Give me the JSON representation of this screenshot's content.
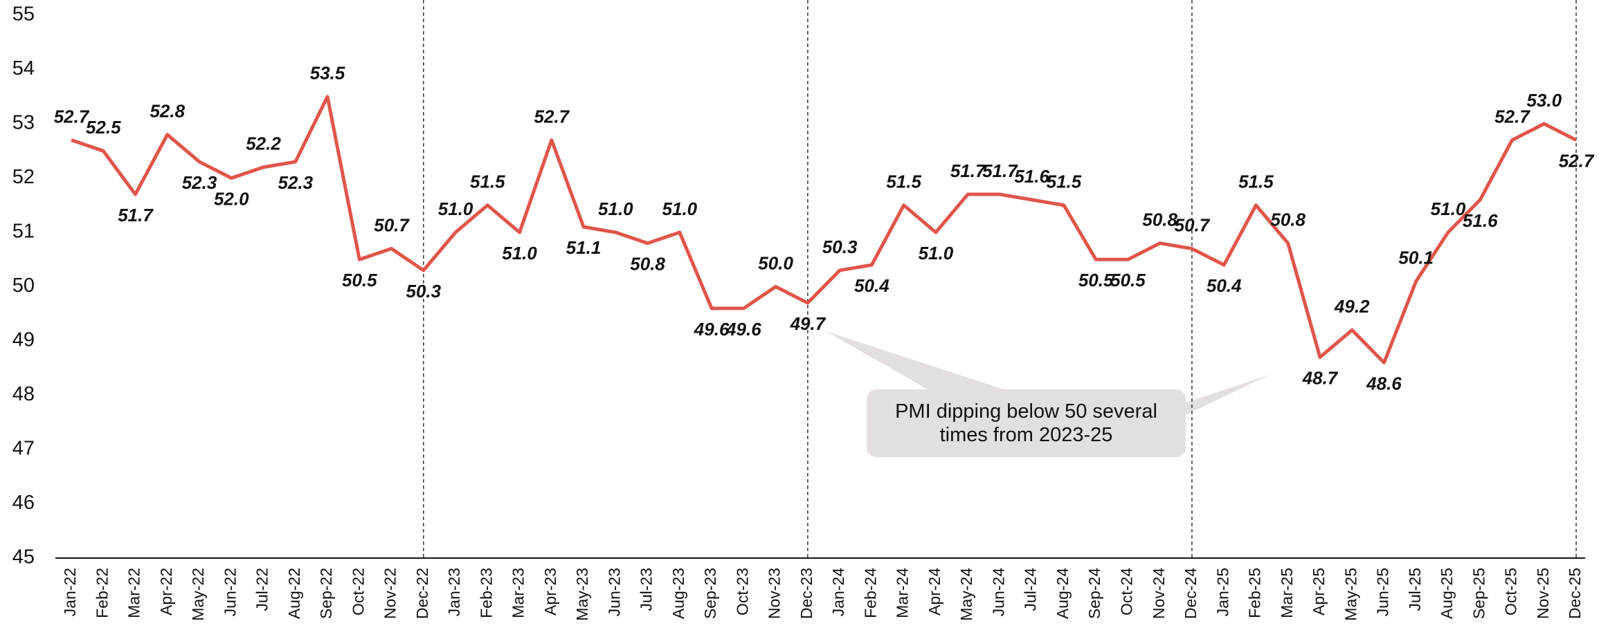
{
  "chart_data": {
    "type": "line",
    "categories": [
      "Jan-22",
      "Feb-22",
      "Mar-22",
      "Apr-22",
      "May-22",
      "Jun-22",
      "Jul-22",
      "Aug-22",
      "Sep-22",
      "Oct-22",
      "Nov-22",
      "Dec-22",
      "Jan-23",
      "Feb-23",
      "Mar-23",
      "Apr-23",
      "May-23",
      "Jun-23",
      "Jul-23",
      "Aug-23",
      "Sep-23",
      "Oct-23",
      "Nov-23",
      "Dec-23",
      "Jan-24",
      "Feb-24",
      "Mar-24",
      "Apr-24",
      "May-24",
      "Jun-24",
      "Jul-24",
      "Aug-24",
      "Sep-24",
      "Oct-24",
      "Nov-24",
      "Dec-24",
      "Jan-25",
      "Feb-25",
      "Mar-25",
      "Apr-25",
      "May-25",
      "Jun-25",
      "Jul-25",
      "Aug-25",
      "Sep-25",
      "Oct-25",
      "Nov-25",
      "Dec-25"
    ],
    "values": [
      52.7,
      52.5,
      51.7,
      52.8,
      52.3,
      52.0,
      52.2,
      52.3,
      53.5,
      50.5,
      50.7,
      50.3,
      51.0,
      51.5,
      51.0,
      52.7,
      51.1,
      51.0,
      50.8,
      51.0,
      49.6,
      49.6,
      50.0,
      49.7,
      50.3,
      50.4,
      51.5,
      51.0,
      51.7,
      51.7,
      51.6,
      51.5,
      50.5,
      50.5,
      50.8,
      50.7,
      50.4,
      51.5,
      50.8,
      48.7,
      49.2,
      48.6,
      50.1,
      51.0,
      51.6,
      52.7,
      53.0,
      52.7
    ],
    "value_labels": [
      "52.7",
      "52.5",
      "51.7",
      "52.8",
      "52.3",
      "52.0",
      "52.2",
      "52.3",
      "53.5",
      "50.5",
      "50.7",
      "50.3",
      "51.0",
      "51.5",
      "51.0",
      "52.7",
      "51.1",
      "51.0",
      "50.8",
      "51.0",
      "49.6",
      "49.6",
      "50.0",
      "49.7",
      "50.3",
      "50.4",
      "51.5",
      "51.0",
      "51.7",
      "51.7",
      "51.6",
      "51.5",
      "50.5",
      "50.5",
      "50.8",
      "50.7",
      "50.4",
      "51.5",
      "50.8",
      "48.7",
      "49.2",
      "48.6",
      "50.1",
      "51.0",
      "51.6",
      "52.7",
      "53.0",
      "52.7"
    ],
    "color": "#e0554b",
    "ylim": [
      45,
      55
    ],
    "yticks": [
      45,
      46,
      47,
      48,
      49,
      50,
      51,
      52,
      53,
      54,
      55
    ],
    "annotation": "PMI dipping below 50 several times from 2023-25"
  }
}
